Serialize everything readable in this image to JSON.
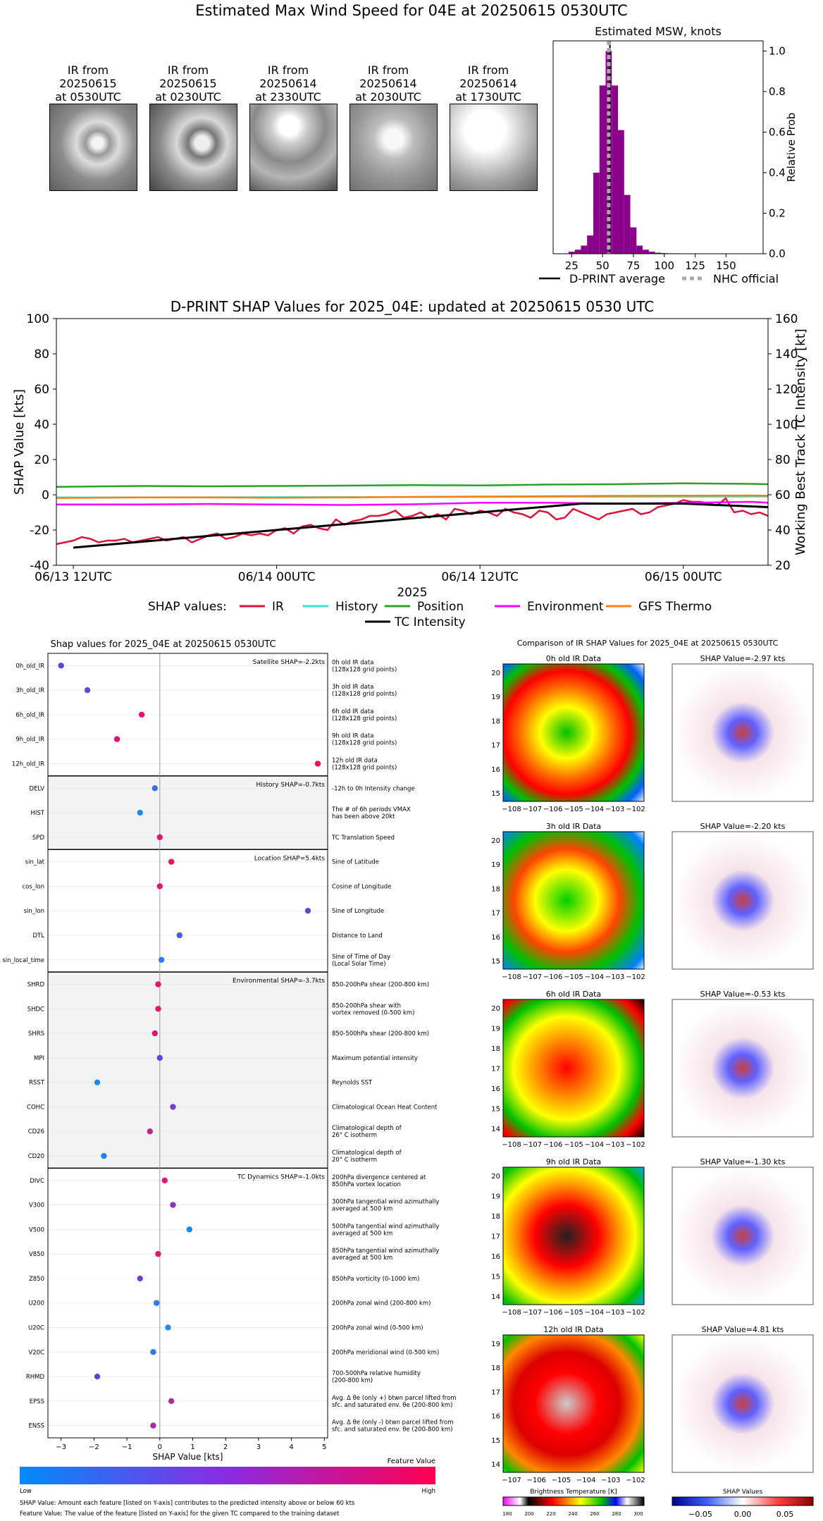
{
  "page_title": "Estimated Max Wind Speed for 04E at 20250615 0530UTC",
  "thumbnails": [
    {
      "caption": "IR from\n20250615\nat 0530UTC"
    },
    {
      "caption": "IR from\n20250615\nat 0230UTC"
    },
    {
      "caption": "IR from\n20250614\nat 2330UTC"
    },
    {
      "caption": "IR from\n20250614\nat 2030UTC"
    },
    {
      "caption": "IR from\n20250614\nat 1730UTC"
    }
  ],
  "legend_top": {
    "line1": "D-PRINT average",
    "line2": "NHC official"
  },
  "colors": {
    "hist": "#8b008b",
    "nhc": "#aaaaaa",
    "ir": "#dc143c",
    "history": "#40e0d0",
    "position": "#2ca02c",
    "environment": "#ff00ff",
    "gfs": "#ff7f0e",
    "tc": "#000000",
    "low": "#008bfb",
    "high": "#ff0051"
  },
  "chart_data": [
    {
      "type": "bar",
      "title": "Estimated MSW, knots",
      "xlabel": "",
      "ylabel": "Relative Prob",
      "xlim": [
        10,
        180
      ],
      "ylim": [
        0,
        1.05
      ],
      "xticks": [
        25,
        50,
        75,
        100,
        125,
        150
      ],
      "yticks": [
        0.0,
        0.2,
        0.4,
        0.6,
        0.8,
        1.0
      ],
      "bin_width": 5,
      "bins": [
        {
          "x": 25,
          "y": 0.01
        },
        {
          "x": 30,
          "y": 0.02
        },
        {
          "x": 35,
          "y": 0.04
        },
        {
          "x": 40,
          "y": 0.09
        },
        {
          "x": 45,
          "y": 0.4
        },
        {
          "x": 50,
          "y": 0.83
        },
        {
          "x": 55,
          "y": 1.0
        },
        {
          "x": 60,
          "y": 0.83
        },
        {
          "x": 65,
          "y": 0.61
        },
        {
          "x": 70,
          "y": 0.29
        },
        {
          "x": 75,
          "y": 0.13
        },
        {
          "x": 80,
          "y": 0.04
        },
        {
          "x": 85,
          "y": 0.02
        },
        {
          "x": 90,
          "y": 0.01
        },
        {
          "x": 95,
          "y": 0.005
        },
        {
          "x": 100,
          "y": 0.003
        },
        {
          "x": 105,
          "y": 0.002
        },
        {
          "x": 110,
          "y": 0.002
        },
        {
          "x": 115,
          "y": 0.001
        },
        {
          "x": 120,
          "y": 0.001
        }
      ],
      "dprint_average": 56,
      "nhc_official": 55
    },
    {
      "type": "line",
      "title": "D-PRINT SHAP Values for 2025_04E: updated at 20250615 0530 UTC",
      "xlabel": "2025",
      "ylabel": "SHAP Value [kts]",
      "ylabel_right": "Working Best Track TC Intensity [kt]",
      "ylim": [
        -40,
        100
      ],
      "ylim_right": [
        20,
        160
      ],
      "yticks": [
        -40,
        -20,
        0,
        20,
        40,
        60,
        80,
        100
      ],
      "yticks_right": [
        20,
        40,
        60,
        80,
        100,
        120,
        140,
        160
      ],
      "xlim": [
        -1,
        41
      ],
      "xticks": [
        {
          "x": 0,
          "label": "06/13 12UTC"
        },
        {
          "x": 12,
          "label": "06/14 00UTC"
        },
        {
          "x": 24,
          "label": "06/14 12UTC"
        },
        {
          "x": 36,
          "label": "06/15 00UTC"
        }
      ],
      "legend_title": "SHAP values:",
      "series": [
        {
          "name": "IR",
          "x": [
            -1,
            -0.5,
            0,
            0.5,
            1,
            1.5,
            2,
            2.5,
            3,
            3.5,
            4,
            4.5,
            5,
            5.5,
            6,
            6.5,
            7,
            7.5,
            8,
            8.5,
            9,
            9.5,
            10,
            10.5,
            11,
            11.5,
            12,
            12.5,
            13,
            13.5,
            14,
            14.5,
            15,
            15.5,
            16,
            16.5,
            17,
            17.5,
            18,
            18.5,
            19,
            19.5,
            20,
            20.5,
            21,
            21.5,
            22,
            22.5,
            23,
            23.5,
            24,
            24.5,
            25,
            25.5,
            26,
            26.5,
            27,
            27.5,
            28,
            28.5,
            29,
            29.5,
            30,
            30.5,
            31,
            31.5,
            32,
            32.5,
            33,
            33.5,
            34,
            34.5,
            35,
            35.5,
            36,
            36.5,
            37,
            37.5,
            38,
            38.5,
            39,
            39.5,
            40,
            40.5,
            41
          ],
          "values": [
            -28,
            -27,
            -26,
            -24,
            -25,
            -27,
            -26,
            -26,
            -25,
            -27,
            -26,
            -25,
            -24,
            -26,
            -25,
            -24,
            -27,
            -25,
            -23,
            -22,
            -25,
            -24,
            -22,
            -23,
            -22,
            -23,
            -20,
            -19,
            -22,
            -18,
            -17,
            -19,
            -20,
            -14,
            -17,
            -15,
            -14,
            -12,
            -12,
            -11,
            -9,
            -13,
            -12,
            -10,
            -13,
            -11,
            -14,
            -8,
            -9,
            -11,
            -9,
            -10,
            -12,
            -8,
            -10,
            -11,
            -13,
            -9,
            -10,
            -14,
            -13,
            -8,
            -10,
            -12,
            -14,
            -11,
            -10,
            -9,
            -8,
            -11,
            -10,
            -7,
            -6,
            -5,
            -3,
            -4,
            -4,
            -5,
            -6,
            -2,
            -10,
            -9,
            -11,
            -10,
            -12
          ]
        },
        {
          "name": "History",
          "x": [
            -1,
            41
          ],
          "values": [
            -1.5,
            -1
          ]
        },
        {
          "name": "Position",
          "x": [
            -1,
            4,
            8,
            12,
            16,
            20,
            24,
            28,
            32,
            36,
            40,
            41
          ],
          "values": [
            4.5,
            5,
            4.8,
            5,
            5.2,
            5.5,
            5.3,
            5.8,
            6,
            6.5,
            6.2,
            6
          ]
        },
        {
          "name": "Environment",
          "x": [
            -1,
            4,
            8,
            12,
            16,
            20,
            24,
            28,
            32,
            36,
            40,
            41
          ],
          "values": [
            -5.5,
            -5.5,
            -5.2,
            -5.5,
            -5.8,
            -5.4,
            -4.5,
            -4.5,
            -5,
            -4.6,
            -4,
            -4.5
          ]
        },
        {
          "name": "GFS Thermo",
          "x": [
            -1,
            4,
            8,
            12,
            16,
            20,
            24,
            28,
            32,
            36,
            40,
            41
          ],
          "values": [
            -1.8,
            -1.5,
            -1.5,
            -1.7,
            -1.5,
            -1.2,
            -1,
            -0.8,
            -0.6,
            -0.5,
            -0.4,
            -0.5
          ]
        },
        {
          "name": "TC Intensity",
          "x": [
            0,
            6,
            12,
            18,
            24,
            30,
            36,
            42
          ],
          "values": [
            30,
            35,
            40,
            45,
            50,
            55,
            55,
            53
          ],
          "axis": "right"
        }
      ]
    },
    {
      "type": "scatter",
      "title": "Shap values for 2025_04E at 20250615 0530UTC",
      "xlabel": "SHAP Value [kts]",
      "xlim": [
        -3.4,
        5.1
      ],
      "xticks": [
        -3,
        -2,
        -1,
        0,
        1,
        2,
        3,
        4,
        5
      ],
      "groups": [
        {
          "title": "Satellite SHAP=-2.2kts",
          "shaded": false,
          "features": [
            {
              "name": "0h_old_IR",
              "value": -3.0,
              "color": "#5648d6",
              "desc": "0h old IR data\n(128x128 grid points)"
            },
            {
              "name": "3h_old_IR",
              "value": -2.2,
              "color": "#5a4bd4",
              "desc": "3h old IR data\n(128x128 grid points)"
            },
            {
              "name": "6h_old_IR",
              "value": -0.55,
              "color": "#e7136e",
              "desc": "6h old IR data\n(128x128 grid points)"
            },
            {
              "name": "9h_old_IR",
              "value": -1.3,
              "color": "#e0137a",
              "desc": "9h old IR data\n(128x128 grid points)"
            },
            {
              "name": "12h_old_IR",
              "value": 4.8,
              "color": "#f50e5a",
              "desc": "12h old IR data\n(128x128 grid points)"
            }
          ]
        },
        {
          "title": "History SHAP=-0.7kts",
          "shaded": true,
          "features": [
            {
              "name": "DELV",
              "value": -0.15,
              "color": "#3a6ee6",
              "desc": "-12h to 0h Intensity change"
            },
            {
              "name": "HIST",
              "value": -0.6,
              "color": "#1c8ef0",
              "desc": "The # of 6h periods VMAX\nhas been above 20kt"
            },
            {
              "name": "SPD",
              "value": 0.0,
              "color": "#e01575",
              "desc": "TC Translation Speed"
            }
          ]
        },
        {
          "title": "Location SHAP=5.4kts",
          "shaded": false,
          "features": [
            {
              "name": "sin_lat",
              "value": 0.35,
              "color": "#f01164",
              "desc": "Sine of Latitude"
            },
            {
              "name": "cos_lon",
              "value": 0.0,
              "color": "#e31572",
              "desc": "Cosine of Longitude"
            },
            {
              "name": "sin_lon",
              "value": 4.5,
              "color": "#5a4bd4",
              "desc": "Sine of Longitude"
            },
            {
              "name": "DTL",
              "value": 0.6,
              "color": "#4d5be0",
              "desc": "Distance to Land"
            },
            {
              "name": "sin_local_time",
              "value": 0.05,
              "color": "#2b7cec",
              "desc": "Sine of Time of Day\n(Local Solar Time)"
            }
          ]
        },
        {
          "title": "Environmental SHAP=-3.7kts",
          "shaded": true,
          "features": [
            {
              "name": "SHRD",
              "value": -0.05,
              "color": "#e8136d",
              "desc": "850-200hPa shear (200-800 km)"
            },
            {
              "name": "SHDC",
              "value": -0.05,
              "color": "#e8136d",
              "desc": "850-200hPa shear with\nvortex removed (0-500 km)"
            },
            {
              "name": "SHRS",
              "value": -0.15,
              "color": "#e31572",
              "desc": "850-500hPa shear (200-800 km)"
            },
            {
              "name": "MPI",
              "value": 0.0,
              "color": "#5a4bd4",
              "desc": "Maximum potential intensity"
            },
            {
              "name": "RSST",
              "value": -1.9,
              "color": "#148df2",
              "desc": "Reynolds SST"
            },
            {
              "name": "COHC",
              "value": 0.4,
              "color": "#7a3bc6",
              "desc": "Climatological Ocean Heat Content"
            },
            {
              "name": "CD26",
              "value": -0.3,
              "color": "#c8238c",
              "desc": "Climatological depth of\n26° C isotherm"
            },
            {
              "name": "CD20",
              "value": -1.7,
              "color": "#1f86ee",
              "desc": "Climatological depth of\n20° C isotherm"
            }
          ]
        },
        {
          "title": "TC Dynamics SHAP=-1.0kts",
          "shaded": false,
          "features": [
            {
              "name": "DIVC",
              "value": 0.15,
              "color": "#e01575",
              "desc": "200hPa divergence centered at\n850hPa vortex location"
            },
            {
              "name": "V300",
              "value": 0.4,
              "color": "#8a35be",
              "desc": "300hPa tangential wind azimuthally\naveraged at 500 km"
            },
            {
              "name": "V500",
              "value": 0.9,
              "color": "#158cf2",
              "desc": "500hPa tangential wind azimuthally\naveraged at 500 km"
            },
            {
              "name": "V850",
              "value": -0.05,
              "color": "#e8136d",
              "desc": "850hPa tangential wind azimuthally\naveraged at 500 km"
            },
            {
              "name": "Z850",
              "value": -0.6,
              "color": "#6a42ce",
              "desc": "850hPa vorticity (0-1000 km)"
            },
            {
              "name": "U200",
              "value": -0.1,
              "color": "#2a7ded",
              "desc": "200hPa zonal wind (200-800 km)"
            },
            {
              "name": "U20C",
              "value": 0.25,
              "color": "#238aef",
              "desc": "200hPa zonal wind (0-500 km)"
            },
            {
              "name": "V20C",
              "value": -0.2,
              "color": "#2f78ea",
              "desc": "200hPa meridional wind (0-500 km)"
            },
            {
              "name": "RHMD",
              "value": -1.9,
              "color": "#5648d6",
              "desc": "700-500hPa relative humidity\n(200-800 km)"
            },
            {
              "name": "EPSS",
              "value": 0.35,
              "color": "#b52a98",
              "desc": "Avg. Δ θe (only +) btwn parcel lifted from\nsfc. and saturated env. θe (200-800 km)"
            },
            {
              "name": "ENSS",
              "value": -0.2,
              "color": "#a52ea6",
              "desc": "Avg. Δ θe (only -) btwn parcel lifted from\nsfc. and saturated env. θe (200-800 km)"
            }
          ]
        }
      ]
    }
  ],
  "colorbar_feature": {
    "title": "Feature Value",
    "low": "Low",
    "high": "High"
  },
  "notes": {
    "line1": "SHAP Value: Amount each feature [listed on Y-axis] contributes to the predicted intensity above or below 60 kts",
    "line2": "Feature Value: The value of the feature [listed on Y-axis] for the given TC compared to the training dataset"
  },
  "ir_comparison": {
    "title": "Comparison of IR SHAP Values for 2025_04E at 20250615 0530UTC",
    "panels": [
      {
        "ir_title": "0h old IR Data",
        "shap_title": "SHAP Value=-2.97 kts",
        "yticks": [
          "20",
          "19",
          "18",
          "17",
          "16",
          "15"
        ],
        "xticks": [
          "−108",
          "−107",
          "−106",
          "−105",
          "−104",
          "−103",
          "−102"
        ]
      },
      {
        "ir_title": "3h old IR Data",
        "shap_title": "SHAP Value=-2.20 kts",
        "yticks": [
          "20",
          "19",
          "18",
          "17",
          "16",
          "15"
        ],
        "xticks": [
          "−108",
          "−107",
          "−106",
          "−105",
          "−104",
          "−103",
          "−102"
        ]
      },
      {
        "ir_title": "6h old IR Data",
        "shap_title": "SHAP Value=-0.53 kts",
        "yticks": [
          "20",
          "19",
          "18",
          "17",
          "16",
          "15",
          "14"
        ],
        "xticks": [
          "−108",
          "−107",
          "−106",
          "−105",
          "−104",
          "−103",
          "−102"
        ]
      },
      {
        "ir_title": "9h old IR Data",
        "shap_title": "SHAP Value=-1.30 kts",
        "yticks": [
          "20",
          "19",
          "18",
          "17",
          "16",
          "15",
          "14"
        ],
        "xticks": [
          "−108",
          "−107",
          "−106",
          "−105",
          "−104",
          "−103",
          "−102"
        ]
      },
      {
        "ir_title": "12h old IR Data",
        "shap_title": "SHAP Value=4.81 kts",
        "yticks": [
          "19",
          "18",
          "17",
          "16",
          "15",
          "14"
        ],
        "xticks": [
          "−107",
          "−106",
          "−105",
          "−104",
          "−103",
          "−102"
        ]
      }
    ],
    "bt_colorbar": {
      "title": "Brightness Temperature [K]",
      "ticks": [
        "180",
        "200",
        "220",
        "240",
        "260",
        "280",
        "300"
      ]
    },
    "shap_colorbar": {
      "title": "SHAP Values",
      "ticks": [
        "−0.05",
        "0.00",
        "0.05"
      ]
    }
  }
}
